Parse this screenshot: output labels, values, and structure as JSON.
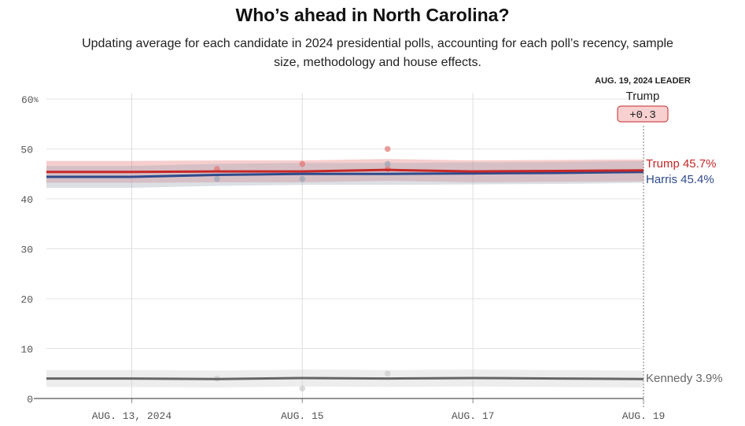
{
  "header": {
    "title": "Who’s ahead in North Carolina?",
    "subtitle": "Updating average for each candidate in 2024 presidential polls, accounting for each poll’s recency, sample size, methodology and house effects."
  },
  "leader": {
    "date_label": "AUG. 19, 2024 LEADER",
    "name": "Trump",
    "margin": "+0.3",
    "box_color": "#f8d0d0",
    "box_border": "#c62828"
  },
  "chart_data": {
    "type": "line",
    "x": [
      "2024-08-12",
      "2024-08-13",
      "2024-08-14",
      "2024-08-15",
      "2024-08-16",
      "2024-08-17",
      "2024-08-18",
      "2024-08-19"
    ],
    "x_ticks": [
      {
        "date": "2024-08-13",
        "label": "AUG. 13, 2024"
      },
      {
        "date": "2024-08-15",
        "label": "AUG. 15"
      },
      {
        "date": "2024-08-17",
        "label": "AUG. 17"
      },
      {
        "date": "2024-08-19",
        "label": "AUG. 19"
      }
    ],
    "ylim": [
      0,
      60
    ],
    "y_ticks": [
      0,
      10,
      20,
      30,
      40,
      50,
      60
    ],
    "y_tick_labels": [
      "0",
      "10",
      "20",
      "30",
      "40",
      "50",
      "60%"
    ],
    "grid": true,
    "series": [
      {
        "name": "Trump",
        "end_label": "Trump 45.7%",
        "color": "#c62828",
        "band_color": "#e57373",
        "values": [
          45.4,
          45.4,
          45.5,
          45.5,
          45.8,
          45.5,
          45.6,
          45.7
        ],
        "band": [
          [
            43.2,
            47.6
          ],
          [
            43.2,
            47.6
          ],
          [
            43.3,
            47.7
          ],
          [
            43.3,
            47.7
          ],
          [
            43.6,
            48.0
          ],
          [
            43.3,
            47.7
          ],
          [
            43.4,
            47.8
          ],
          [
            43.5,
            47.9
          ]
        ],
        "polls": [
          {
            "x": "2024-08-14",
            "y": 46
          },
          {
            "x": "2024-08-15",
            "y": 47
          },
          {
            "x": "2024-08-16",
            "y": 50
          },
          {
            "x": "2024-08-16",
            "y": 46
          }
        ]
      },
      {
        "name": "Harris",
        "end_label": "Harris 45.4%",
        "color": "#2e4a8c",
        "band_color": "#9aa5b5",
        "values": [
          44.4,
          44.4,
          44.8,
          45.0,
          45.0,
          45.1,
          45.2,
          45.4
        ],
        "band": [
          [
            42.2,
            46.6
          ],
          [
            42.2,
            46.6
          ],
          [
            42.6,
            47.0
          ],
          [
            42.8,
            47.2
          ],
          [
            42.8,
            47.2
          ],
          [
            42.9,
            47.3
          ],
          [
            43.0,
            47.4
          ],
          [
            43.2,
            47.6
          ]
        ],
        "polls": [
          {
            "x": "2024-08-14",
            "y": 44
          },
          {
            "x": "2024-08-15",
            "y": 44
          },
          {
            "x": "2024-08-16",
            "y": 47
          }
        ]
      },
      {
        "name": "Kennedy",
        "end_label": "Kennedy 3.9%",
        "color": "#666666",
        "band_color": "#cccccc",
        "values": [
          4.0,
          4.0,
          3.9,
          4.1,
          4.0,
          4.1,
          4.0,
          3.9
        ],
        "band": [
          [
            2.3,
            5.7
          ],
          [
            2.3,
            5.7
          ],
          [
            2.2,
            5.6
          ],
          [
            2.4,
            5.8
          ],
          [
            2.3,
            5.7
          ],
          [
            2.4,
            5.8
          ],
          [
            2.3,
            5.7
          ],
          [
            2.2,
            5.6
          ]
        ],
        "polls": [
          {
            "x": "2024-08-14",
            "y": 4
          },
          {
            "x": "2024-08-15",
            "y": 2
          },
          {
            "x": "2024-08-16",
            "y": 5
          }
        ]
      }
    ]
  }
}
